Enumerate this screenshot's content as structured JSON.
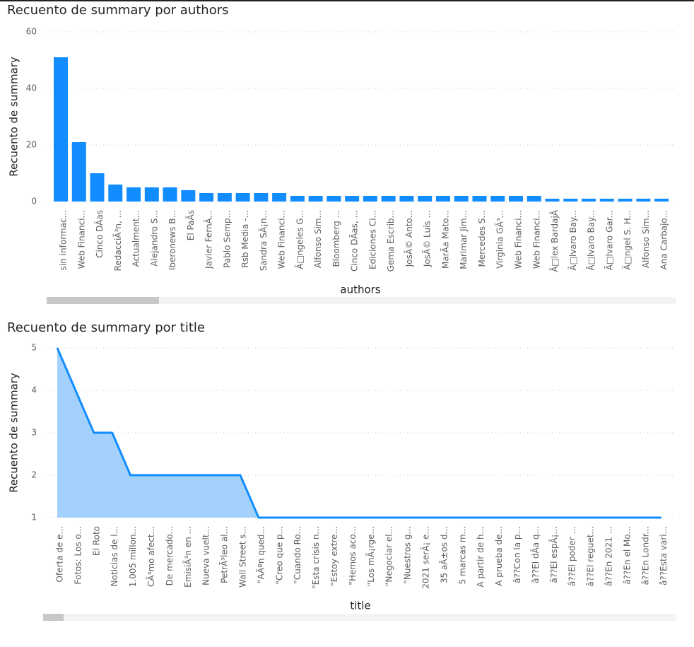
{
  "chart_data": [
    {
      "type": "bar",
      "title": "Recuento de summary por authors",
      "y_label": "Recuento de summary",
      "x_label": "authors",
      "color": "#118dff",
      "grid": true,
      "categories": [
        "sin informac...",
        "Web Financi...",
        "Cinco DÃas",
        "RedacciÃ³n, ...",
        "Actualment...",
        "Alejandro S...",
        "Iberonews B...",
        "El PaÃs",
        "Javier FernÃ...",
        "Pablo Semp...",
        "Rsb Media -...",
        "Sandra SÃ¡n...",
        "Web Financi...",
        "Ã□ngeles G...",
        "Alfonso Sim...",
        "Bloomberg ...",
        "Cinco DÃas, ...",
        "Ediciones Ci...",
        "Gema Escrib...",
        "JosÃ© Anto...",
        "JosÃ© Luis ...",
        "MarÃa Mato...",
        "Marimar Jim...",
        "Mercedes S...",
        "Virginia GÃ³...",
        "Web Financi...",
        "Web Financi...",
        "Ã□lex BardajÃ",
        "Ã□lvaro Bay...",
        "Ã□lvaro Bay...",
        "Ã□lvaro Gar...",
        "Ã□ngel S. H...",
        "Alfonso Sim...",
        "Ana Carbajo..."
      ],
      "values": [
        51,
        21,
        10,
        6,
        5,
        5,
        5,
        4,
        3,
        3,
        3,
        3,
        3,
        2,
        2,
        2,
        2,
        2,
        2,
        2,
        2,
        2,
        2,
        2,
        2,
        2,
        2,
        1,
        1,
        1,
        1,
        1,
        1,
        1
      ],
      "ylim": [
        0,
        60
      ],
      "yticks": [
        0,
        20,
        40,
        60
      ]
    },
    {
      "type": "area",
      "title": "Recuento de summary por title",
      "y_label": "Recuento de summary",
      "x_label": "title",
      "color": "#118dff",
      "fill": "#a3d1fb",
      "grid": true,
      "categories": [
        "Oferta de e...",
        "Fotos: Los o...",
        "El Roto",
        "Noticias de l...",
        "1.005 millon...",
        "CÃ³mo afect...",
        "De mercado...",
        "EmisiÃ³n en ...",
        "Nueva vuelt...",
        "PetrÃ³leo al...",
        "Wall Street s...",
        "\"AÃºn qued...",
        "\"Creo que p...",
        "\"Cuando Ro...",
        "\"Esta crisis n...",
        "\"Estoy extre...",
        "\"Hemos aco...",
        "\"Los mÃ¡rge...",
        "\"Negociar el...",
        "\"Nuestros g...",
        "2021 serÃ¡ e...",
        "35 aÃ±os d...",
        "5 marcas m...",
        "A partir de h...",
        "A prueba de...",
        "â??Con la p...",
        "â??El dÃa q...",
        "â??El espÃ¡...",
        "â??El poder ...",
        "â??El reguet...",
        "â??En 2021 ...",
        "â??En el Mo...",
        "â??En Londr...",
        "â??Esta vari..."
      ],
      "values": [
        5,
        4,
        3,
        3,
        2,
        2,
        2,
        2,
        2,
        2,
        2,
        1,
        1,
        1,
        1,
        1,
        1,
        1,
        1,
        1,
        1,
        1,
        1,
        1,
        1,
        1,
        1,
        1,
        1,
        1,
        1,
        1,
        1,
        1
      ],
      "ylim": [
        1,
        5
      ],
      "yticks": [
        1,
        2,
        3,
        4,
        5
      ]
    }
  ]
}
